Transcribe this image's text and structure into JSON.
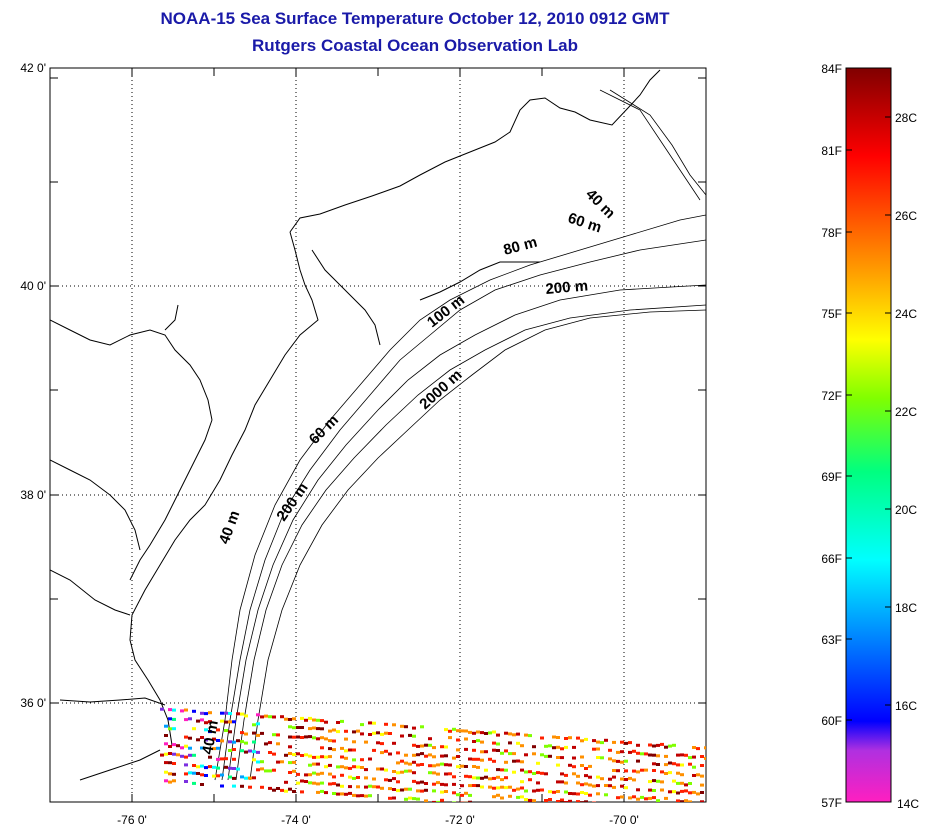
{
  "title": "NOAA-15 Sea Surface Temperature October 12, 2010 0912 GMT",
  "subtitle": "Rutgers Coastal Ocean Observation Lab",
  "map": {
    "lat_labels": [
      "42 0'",
      "40 0'",
      "38 0'",
      "36 0'"
    ],
    "lon_labels": [
      "-76 0'",
      "-74 0'",
      "-72 0'",
      "-70 0'"
    ],
    "contour_labels": [
      "40 m",
      "60 m",
      "80 m",
      "200 m",
      "100 m",
      "2000 m",
      "60 m",
      "200 m",
      "40 m",
      "40 m"
    ]
  },
  "colorbar": {
    "fahrenheit_labels": [
      "84F",
      "81F",
      "78F",
      "75F",
      "72F",
      "69F",
      "66F",
      "63F",
      "60F",
      "57F"
    ],
    "celsius_labels": [
      "28C",
      "26C",
      "24C",
      "22C",
      "20C",
      "18C",
      "16C",
      "14C"
    ],
    "colors": [
      "#ff1fc0",
      "#7b2fe0",
      "#0000ff",
      "#00a0ff",
      "#00ffff",
      "#00ff80",
      "#80ff00",
      "#ffff00",
      "#ff9000",
      "#ff2000",
      "#c00000",
      "#800000"
    ]
  }
}
